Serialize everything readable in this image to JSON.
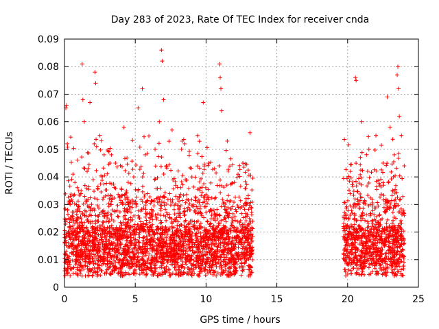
{
  "chart_data": {
    "type": "scatter",
    "title": "Day 283 of 2023, Rate Of TEC Index for receiver cnda",
    "xlabel": "GPS time / hours",
    "ylabel": "ROTI / TECUs",
    "xlim": [
      0,
      25
    ],
    "ylim": [
      0,
      0.09
    ],
    "xticks": [
      "0",
      "5",
      "10",
      "15",
      "20",
      "25"
    ],
    "yticks": [
      "0",
      "0.01",
      "0.02",
      "0.03",
      "0.04",
      "0.05",
      "0.06",
      "0.07",
      "0.08",
      "0.09"
    ],
    "grid": true,
    "marker": "+",
    "color": "#ff0000",
    "data_coverage_hours": [
      [
        0,
        13.3
      ],
      [
        19.7,
        24
      ]
    ],
    "series": [
      {
        "points": [
          [
            0.05,
            0.012
          ],
          [
            0.1,
            0.065
          ],
          [
            0.15,
            0.066
          ],
          [
            0.2,
            0.052
          ],
          [
            0.3,
            0.025
          ],
          [
            0.4,
            0.03
          ],
          [
            0.6,
            0.041
          ],
          [
            0.8,
            0.018
          ],
          [
            1.0,
            0.035
          ],
          [
            1.25,
            0.081
          ],
          [
            1.3,
            0.068
          ],
          [
            1.4,
            0.06
          ],
          [
            1.6,
            0.042
          ],
          [
            1.8,
            0.067
          ],
          [
            2.0,
            0.022
          ],
          [
            2.1,
            0.052
          ],
          [
            2.15,
            0.078
          ],
          [
            2.2,
            0.074
          ],
          [
            2.5,
            0.055
          ],
          [
            2.8,
            0.048
          ],
          [
            3.0,
            0.026
          ],
          [
            3.3,
            0.03
          ],
          [
            3.6,
            0.045
          ],
          [
            3.9,
            0.033
          ],
          [
            4.2,
            0.058
          ],
          [
            4.5,
            0.038
          ],
          [
            4.9,
            0.031
          ],
          [
            5.2,
            0.065
          ],
          [
            5.5,
            0.072
          ],
          [
            5.7,
            0.048
          ],
          [
            6.1,
            0.015
          ],
          [
            6.4,
            0.05
          ],
          [
            6.7,
            0.06
          ],
          [
            6.85,
            0.086
          ],
          [
            6.9,
            0.082
          ],
          [
            7.0,
            0.068
          ],
          [
            7.2,
            0.044
          ],
          [
            7.6,
            0.057
          ],
          [
            8.0,
            0.032
          ],
          [
            8.5,
            0.052
          ],
          [
            9.0,
            0.04
          ],
          [
            9.4,
            0.055
          ],
          [
            9.8,
            0.067
          ],
          [
            10.2,
            0.045
          ],
          [
            10.6,
            0.043
          ],
          [
            10.95,
            0.081
          ],
          [
            11.0,
            0.076
          ],
          [
            11.05,
            0.072
          ],
          [
            11.1,
            0.064
          ],
          [
            11.5,
            0.053
          ],
          [
            12.0,
            0.038
          ],
          [
            12.6,
            0.045
          ],
          [
            13.1,
            0.056
          ],
          [
            13.2,
            0.012
          ],
          [
            19.8,
            0.018
          ],
          [
            20.2,
            0.042
          ],
          [
            20.55,
            0.076
          ],
          [
            20.6,
            0.075
          ],
          [
            21.0,
            0.06
          ],
          [
            21.5,
            0.05
          ],
          [
            22.0,
            0.055
          ],
          [
            22.5,
            0.045
          ],
          [
            22.8,
            0.069
          ],
          [
            23.0,
            0.058
          ],
          [
            23.3,
            0.048
          ],
          [
            23.5,
            0.077
          ],
          [
            23.55,
            0.08
          ],
          [
            23.6,
            0.072
          ],
          [
            23.65,
            0.062
          ],
          [
            23.8,
            0.055
          ],
          [
            24.0,
            0.044
          ]
        ]
      }
    ]
  }
}
